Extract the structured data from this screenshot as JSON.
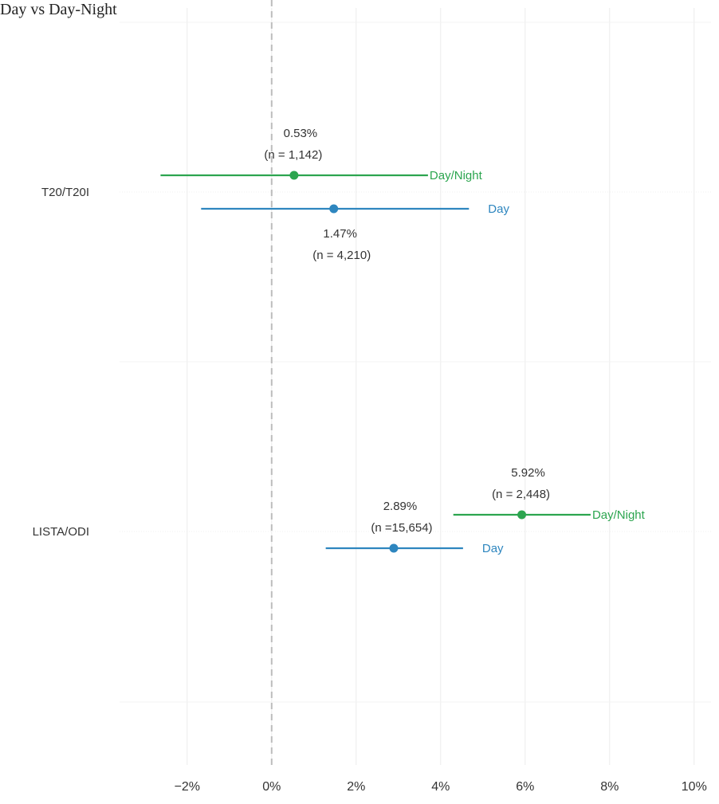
{
  "title": "Day vs Day-Night",
  "colors": {
    "Day/Night": "#2ca54f",
    "Day": "#2e86bf",
    "zero_line": "#bdbdbd",
    "text": "#333333"
  },
  "chart_data": {
    "type": "scatter",
    "title": "Day vs Day-Night",
    "xlabel": "",
    "ylabel": "",
    "x_tick_labels": [
      "−2%",
      "0%",
      "2%",
      "4%",
      "6%",
      "8%",
      "10%"
    ],
    "x_ticks": [
      -2,
      0,
      2,
      4,
      6,
      8,
      10
    ],
    "xlim": [
      -3.6,
      10.4
    ],
    "categories": [
      "T20/T20I",
      "LISTA/ODI"
    ],
    "reference_line": 0,
    "grid": true,
    "legend": "none",
    "series": [
      {
        "name": "Day/Night",
        "points": [
          {
            "category": "T20/T20I",
            "estimate": 0.53,
            "low": -2.63,
            "high": 3.7,
            "label": "0.53%",
            "n_label": "(n = 1,142)"
          },
          {
            "category": "LISTA/ODI",
            "estimate": 5.92,
            "low": 4.3,
            "high": 7.55,
            "label": "5.92%",
            "n_label": "(n = 2,448)"
          }
        ]
      },
      {
        "name": "Day",
        "points": [
          {
            "category": "T20/T20I",
            "estimate": 1.47,
            "low": -1.67,
            "high": 4.67,
            "label": "1.47%",
            "n_label": "(n = 4,210)"
          },
          {
            "category": "LISTA/ODI",
            "estimate": 2.89,
            "low": 1.28,
            "high": 4.53,
            "label": "2.89%",
            "n_label": "(n =15,654)"
          }
        ]
      }
    ]
  }
}
